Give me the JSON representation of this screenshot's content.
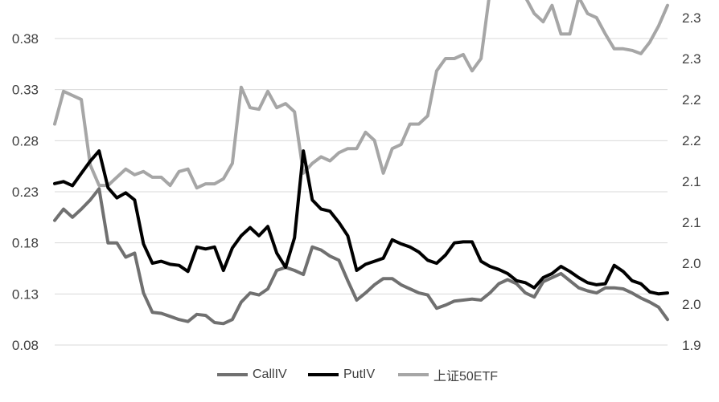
{
  "chart_data": {
    "type": "line",
    "left_axis": {
      "ticks": [
        "0.08",
        "0.13",
        "0.18",
        "0.23",
        "0.28",
        "0.33",
        "0.38"
      ],
      "ylim": [
        0.08,
        0.38
      ]
    },
    "right_axis": {
      "ticks": [
        "1.9",
        "2.0",
        "2.0",
        "2.1",
        "2.1",
        "2.2",
        "2.2",
        "2.3",
        "2.3"
      ],
      "ylim": [
        1.9,
        2.3
      ]
    },
    "grid": true,
    "legend_position": "bottom",
    "series": [
      {
        "name": "CallIV",
        "axis": "left",
        "color": "#707070",
        "values": [
          0.202,
          0.213,
          0.205,
          0.213,
          0.222,
          0.233,
          0.18,
          0.18,
          0.166,
          0.17,
          0.131,
          0.112,
          0.111,
          0.108,
          0.105,
          0.103,
          0.11,
          0.109,
          0.102,
          0.101,
          0.105,
          0.122,
          0.131,
          0.129,
          0.135,
          0.153,
          0.156,
          0.153,
          0.149,
          0.176,
          0.173,
          0.167,
          0.163,
          0.143,
          0.124,
          0.131,
          0.139,
          0.145,
          0.145,
          0.139,
          0.135,
          0.131,
          0.129,
          0.116,
          0.119,
          0.123,
          0.124,
          0.125,
          0.124,
          0.131,
          0.14,
          0.144,
          0.14,
          0.131,
          0.127,
          0.142,
          0.146,
          0.15,
          0.143,
          0.136,
          0.133,
          0.131,
          0.136,
          0.136,
          0.135,
          0.131,
          0.126,
          0.122,
          0.117,
          0.105
        ]
      },
      {
        "name": "PutIV",
        "axis": "left",
        "color": "#000000",
        "values": [
          0.238,
          0.24,
          0.236,
          0.248,
          0.26,
          0.27,
          0.234,
          0.224,
          0.229,
          0.222,
          0.179,
          0.16,
          0.162,
          0.159,
          0.158,
          0.152,
          0.176,
          0.174,
          0.176,
          0.153,
          0.175,
          0.187,
          0.195,
          0.187,
          0.196,
          0.17,
          0.156,
          0.185,
          0.27,
          0.222,
          0.213,
          0.211,
          0.2,
          0.187,
          0.153,
          0.159,
          0.162,
          0.165,
          0.183,
          0.179,
          0.176,
          0.171,
          0.163,
          0.16,
          0.168,
          0.18,
          0.181,
          0.181,
          0.162,
          0.157,
          0.154,
          0.15,
          0.143,
          0.141,
          0.136,
          0.146,
          0.15,
          0.157,
          0.152,
          0.146,
          0.141,
          0.139,
          0.14,
          0.158,
          0.152,
          0.143,
          0.14,
          0.132,
          0.13,
          0.131
        ]
      },
      {
        "name": "上证50ETF",
        "axis": "right",
        "color": "#a6a6a6",
        "values": [
          2.17,
          2.21,
          2.205,
          2.2,
          2.12,
          2.095,
          2.095,
          2.105,
          2.115,
          2.108,
          2.112,
          2.105,
          2.105,
          2.095,
          2.112,
          2.115,
          2.092,
          2.097,
          2.097,
          2.103,
          2.122,
          2.215,
          2.19,
          2.188,
          2.21,
          2.19,
          2.195,
          2.185,
          2.11,
          2.122,
          2.13,
          2.125,
          2.135,
          2.14,
          2.14,
          2.16,
          2.15,
          2.11,
          2.14,
          2.145,
          2.17,
          2.17,
          2.18,
          2.235,
          2.25,
          2.25,
          2.255,
          2.235,
          2.25,
          2.332,
          2.335,
          2.33,
          2.335,
          2.325,
          2.305,
          2.295,
          2.315,
          2.28,
          2.28,
          2.325,
          2.305,
          2.3,
          2.28,
          2.262,
          2.262,
          2.26,
          2.256,
          2.27,
          2.29,
          2.315
        ]
      }
    ]
  }
}
